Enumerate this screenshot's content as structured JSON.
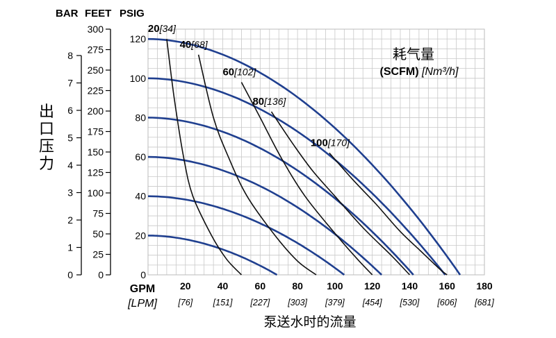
{
  "chart_data": {
    "type": "line",
    "header_labels": [
      "BAR",
      "FEET",
      "PSIG"
    ],
    "y_left_title": "出口压力",
    "x_title": "泵送水时的流量",
    "x_unit_gpm": "GPM",
    "x_unit_lpm": "[LPM]",
    "x_ticks_gpm": [
      "20",
      "40",
      "60",
      "80",
      "100",
      "120",
      "140",
      "160",
      "180"
    ],
    "x_ticks_lpm": [
      "[76]",
      "[151]",
      "[227]",
      "[303]",
      "[379]",
      "[454]",
      "[530]",
      "[606]",
      "[681]"
    ],
    "y_ticks_psig": [
      "0",
      "20",
      "40",
      "60",
      "80",
      "100",
      "120"
    ],
    "y_ticks_feet": [
      "0",
      "25",
      "50",
      "75",
      "100",
      "125",
      "150",
      "175",
      "200",
      "225",
      "250",
      "275",
      "300"
    ],
    "y_ticks_bar": [
      "0",
      "1",
      "2",
      "3",
      "4",
      "5",
      "6",
      "7",
      "8"
    ],
    "xlim": [
      0,
      180
    ],
    "ylim": [
      0,
      125
    ],
    "grid": true,
    "air_title": "耗气量",
    "air_units_bold": "(SCFM)",
    "air_units_italic": "[Nm³/h]",
    "air_curves": [
      {
        "name": "20",
        "italic": "[34]"
      },
      {
        "name": "40",
        "italic": "[68]"
      },
      {
        "name": "60",
        "italic": "[102]"
      },
      {
        "name": "80",
        "italic": "[136]"
      },
      {
        "name": "100",
        "italic": "[170]"
      }
    ],
    "performance_series": [
      {
        "shutoff_psig": 120,
        "max_gpm": 167
      },
      {
        "shutoff_psig": 100,
        "max_gpm": 159
      },
      {
        "shutoff_psig": 80,
        "max_gpm": 142
      },
      {
        "shutoff_psig": 60,
        "max_gpm": 125
      },
      {
        "shutoff_psig": 40,
        "max_gpm": 105
      },
      {
        "shutoff_psig": 20,
        "max_gpm": 69
      }
    ],
    "air_curve_points": [
      [
        [
          10,
          120
        ],
        [
          14,
          90
        ],
        [
          19,
          60
        ],
        [
          24,
          40
        ],
        [
          34,
          20
        ],
        [
          42,
          8
        ],
        [
          50,
          0
        ]
      ],
      [
        [
          27,
          112
        ],
        [
          35,
          80
        ],
        [
          43,
          60
        ],
        [
          53,
          40
        ],
        [
          68,
          20
        ],
        [
          80,
          7
        ],
        [
          90,
          0
        ]
      ],
      [
        [
          50,
          98
        ],
        [
          60,
          80
        ],
        [
          71,
          60
        ],
        [
          84,
          40
        ],
        [
          101,
          20
        ],
        [
          112,
          8
        ],
        [
          120,
          0
        ]
      ],
      [
        [
          66,
          83
        ],
        [
          78,
          66
        ],
        [
          88,
          53
        ],
        [
          100,
          40
        ],
        [
          115,
          24
        ],
        [
          130,
          10
        ],
        [
          140,
          0
        ]
      ],
      [
        [
          97,
          62
        ],
        [
          110,
          48
        ],
        [
          122,
          36
        ],
        [
          135,
          22
        ],
        [
          146,
          12
        ],
        [
          156,
          3
        ],
        [
          160,
          0
        ]
      ]
    ]
  },
  "colors": {
    "curve": "#1f3f8f",
    "air": "#111111",
    "grid": "#c8c8c8"
  }
}
